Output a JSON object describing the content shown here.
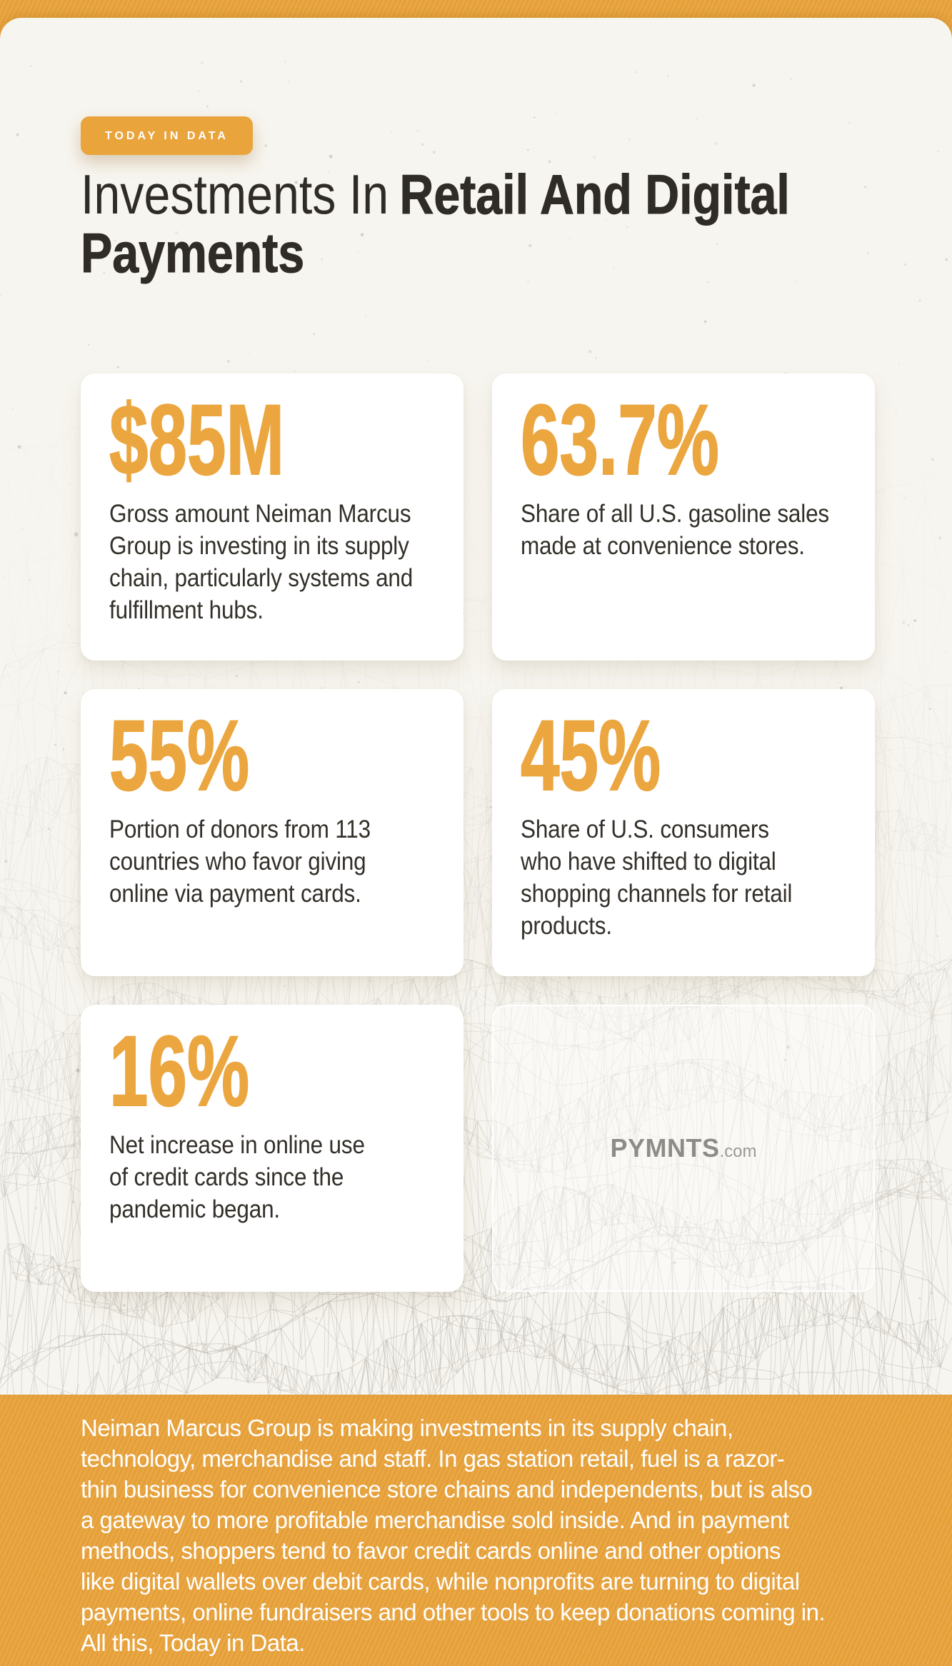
{
  "badge": {
    "label": "TODAY IN DATA"
  },
  "title": {
    "light": "Investments In",
    "bold": "Retail And Digital",
    "line2": "Payments"
  },
  "cards": [
    {
      "value": "$85M",
      "desc": [
        "Gross amount Neiman Marcus",
        "Group is investing in its supply",
        "chain, particularly systems and",
        "fulfillment hubs."
      ]
    },
    {
      "value": "63.7%",
      "desc": [
        "Share of all U.S. gasoline sales",
        "made at convenience stores."
      ]
    },
    {
      "value": "55%",
      "desc": [
        "Portion of donors from 113",
        "countries who favor giving",
        "online via payment cards."
      ]
    },
    {
      "value": "45%",
      "desc": [
        "Share of U.S. consumers",
        "who have shifted to digital",
        "shopping channels for retail",
        "products."
      ]
    },
    {
      "value": "16%",
      "desc": [
        "Net increase in online use",
        "of credit cards since the",
        "pandemic began."
      ]
    }
  ],
  "logo": {
    "name": "PYMNTS",
    "suffix": ".com"
  },
  "footer": {
    "lines": [
      "Neiman Marcus Group is making investments in its supply chain,",
      "technology, merchandise and staff. In gas station retail, fuel is a razor-",
      "thin business for convenience store chains and independents, but is also",
      "a gateway to more profitable merchandise sold inside. And in payment",
      "methods, shoppers tend to favor credit cards online and other options",
      "like digital wallets over debit cards, while nonprofits are turning to digital",
      "payments, online fundraisers and other tools to keep donations coming in.",
      "All this, Today in Data."
    ]
  },
  "colors": {
    "accent_orange": "#E8A23B",
    "panel_cream": "#F7F5EF",
    "stat_orange": "#EBA63F",
    "text_dark": "#2F2B27",
    "desc_text": "#332F29",
    "logo_gray": "#8F8C87",
    "card_white": "#FFFFFF"
  }
}
